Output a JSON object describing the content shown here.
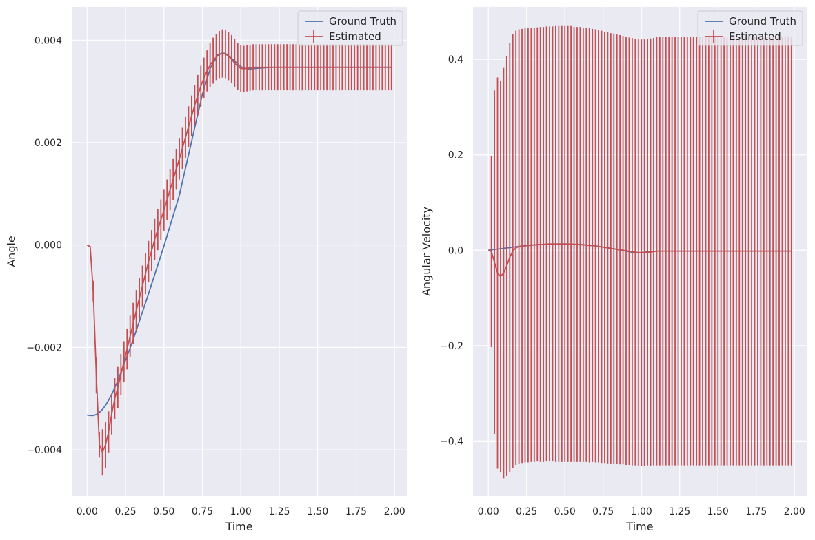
{
  "colors": {
    "background": "#eaeaf2",
    "grid": "#ffffff",
    "ground_truth": "#4c72b0",
    "estimated": "#c44e52",
    "text": "#262626"
  },
  "chart_data": [
    {
      "type": "line",
      "xlabel": "Time",
      "ylabel": "Angle",
      "xlim": [
        -0.1,
        2.08
      ],
      "ylim": [
        -0.0049,
        0.00465
      ],
      "xticks": [
        0.0,
        0.25,
        0.5,
        0.75,
        1.0,
        1.25,
        1.5,
        1.75,
        2.0
      ],
      "xtick_labels": [
        "0.00",
        "0.25",
        "0.50",
        "0.75",
        "1.00",
        "1.25",
        "1.50",
        "1.75",
        "2.00"
      ],
      "yticks": [
        -0.004,
        -0.002,
        0.0,
        0.002,
        0.004
      ],
      "ytick_labels": [
        "−0.004",
        "−0.002",
        "0.000",
        "0.002",
        "0.004"
      ],
      "grid": true,
      "legend": {
        "position": "top-right",
        "entries": [
          "Ground Truth",
          "Estimated"
        ]
      },
      "series": [
        {
          "name": "Ground Truth",
          "x": [
            0.0,
            0.02,
            0.04,
            0.06,
            0.08,
            0.1,
            0.12,
            0.14,
            0.16,
            0.2,
            0.3,
            0.4,
            0.5,
            0.6,
            0.7,
            0.75,
            0.8,
            0.85,
            0.88,
            0.9,
            0.95,
            1.0,
            1.05,
            1.1,
            1.2,
            1.5,
            1.98
          ],
          "y": [
            -0.00332,
            -0.00333,
            -0.00333,
            -0.00331,
            -0.00327,
            -0.00321,
            -0.00313,
            -0.00303,
            -0.00292,
            -0.00265,
            -0.00185,
            -0.00095,
            -2e-05,
            0.00097,
            0.00229,
            0.00294,
            0.00344,
            0.00371,
            0.00375,
            0.00374,
            0.00362,
            0.00348,
            0.00343,
            0.00345,
            0.00347,
            0.00347,
            0.00347
          ]
        },
        {
          "name": "Estimated",
          "type": "errorbar",
          "x": [
            0.0,
            0.02,
            0.04,
            0.06,
            0.08,
            0.1,
            0.12,
            0.14,
            0.16,
            0.18,
            0.2,
            0.22,
            0.24,
            0.26,
            0.28,
            0.3,
            0.32,
            0.34,
            0.36,
            0.38,
            0.4,
            0.42,
            0.44,
            0.46,
            0.48,
            0.5,
            0.52,
            0.54,
            0.56,
            0.58,
            0.6,
            0.62,
            0.64,
            0.66,
            0.68,
            0.7,
            0.72,
            0.74,
            0.76,
            0.78,
            0.8,
            0.82,
            0.84,
            0.86,
            0.88,
            0.9,
            0.92,
            0.94,
            0.96,
            0.98,
            1.0,
            1.02,
            1.04,
            1.06,
            1.08,
            1.1,
            1.12,
            1.14,
            1.16,
            1.18,
            1.2,
            1.22,
            1.24,
            1.26,
            1.28,
            1.3,
            1.32,
            1.34,
            1.36,
            1.38,
            1.4,
            1.42,
            1.44,
            1.46,
            1.48,
            1.5,
            1.52,
            1.54,
            1.56,
            1.58,
            1.6,
            1.62,
            1.64,
            1.66,
            1.68,
            1.7,
            1.72,
            1.74,
            1.76,
            1.78,
            1.8,
            1.82,
            1.84,
            1.86,
            1.88,
            1.9,
            1.92,
            1.94,
            1.96,
            1.98
          ],
          "y": [
            0.0,
            -3e-05,
            -0.0009,
            -0.00255,
            -0.0039,
            -0.00405,
            -0.0039,
            -0.00365,
            -0.0033,
            -0.003,
            -0.00278,
            -0.00253,
            -0.00228,
            -0.00203,
            -0.00178,
            -0.00153,
            -0.00128,
            -0.00104,
            -0.0008,
            -0.00056,
            -0.00032,
            -0.00011,
            0.00011,
            0.0003,
            0.00049,
            0.00068,
            0.00088,
            0.00108,
            0.00128,
            0.00148,
            0.00168,
            0.00189,
            0.0021,
            0.00231,
            0.00252,
            0.00273,
            0.00292,
            0.0031,
            0.00326,
            0.0034,
            0.00351,
            0.0036,
            0.00367,
            0.00372,
            0.00374,
            0.00373,
            0.00369,
            0.00363,
            0.00355,
            0.00349,
            0.00345,
            0.00344,
            0.00345,
            0.00346,
            0.00347,
            0.00347,
            0.00347,
            0.00347,
            0.00347,
            0.00347,
            0.00347,
            0.00347,
            0.00347,
            0.00347,
            0.00347,
            0.00347,
            0.00347,
            0.00347,
            0.00347,
            0.00347,
            0.00347,
            0.00347,
            0.00347,
            0.00347,
            0.00347,
            0.00347,
            0.00347,
            0.00347,
            0.00347,
            0.00347,
            0.00347,
            0.00347,
            0.00347,
            0.00347,
            0.00347,
            0.00347,
            0.00347,
            0.00347,
            0.00347,
            0.00347,
            0.00347,
            0.00347,
            0.00347,
            0.00347,
            0.00347,
            0.00347,
            0.00347,
            0.00347,
            0.00347,
            0.00347
          ],
          "yerr": [
            0.0,
            0.0,
            0.0002,
            0.00035,
            0.00025,
            0.00045,
            0.00045,
            0.0004,
            0.0004,
            0.0004,
            0.0004,
            0.0004,
            0.0004,
            0.0004,
            0.0004,
            0.0004,
            0.0004,
            0.0004,
            0.0004,
            0.0004,
            0.0004,
            0.0004,
            0.0004,
            0.0004,
            0.0004,
            0.0004,
            0.0004,
            0.0004,
            0.0004,
            0.0004,
            0.0004,
            0.0004,
            0.0004,
            0.0004,
            0.0004,
            0.0004,
            0.0004,
            0.0004,
            0.0004,
            0.0004,
            0.00043,
            0.00045,
            0.00045,
            0.00046,
            0.00047,
            0.00047,
            0.00047,
            0.00047,
            0.00047,
            0.00046,
            0.00046,
            0.00045,
            0.00045,
            0.00045,
            0.00045,
            0.00045,
            0.00045,
            0.00045,
            0.00045,
            0.00045,
            0.00045,
            0.00045,
            0.00045,
            0.00045,
            0.00045,
            0.00045,
            0.00045,
            0.00045,
            0.00045,
            0.00045,
            0.00045,
            0.00045,
            0.00045,
            0.00045,
            0.00045,
            0.00045,
            0.00045,
            0.00045,
            0.00045,
            0.00045,
            0.00045,
            0.00045,
            0.00045,
            0.00045,
            0.00045,
            0.00045,
            0.00045,
            0.00045,
            0.00045,
            0.00045,
            0.00045,
            0.00045,
            0.00045,
            0.00045,
            0.00045,
            0.00045,
            0.00045,
            0.00045,
            0.00045,
            0.00045
          ]
        }
      ]
    },
    {
      "type": "line",
      "xlabel": "Time",
      "ylabel": "Angular Velocity",
      "xlim": [
        -0.1,
        2.08
      ],
      "ylim": [
        -0.515,
        0.51
      ],
      "xticks": [
        0.0,
        0.25,
        0.5,
        0.75,
        1.0,
        1.25,
        1.5,
        1.75,
        2.0
      ],
      "xtick_labels": [
        "0.00",
        "0.25",
        "0.50",
        "0.75",
        "1.00",
        "1.25",
        "1.50",
        "1.75",
        "2.00"
      ],
      "yticks": [
        -0.4,
        -0.2,
        0.0,
        0.2,
        0.4
      ],
      "ytick_labels": [
        "−0.4",
        "−0.2",
        "0.0",
        "0.2",
        "0.4"
      ],
      "grid": true,
      "legend": {
        "position": "top-right",
        "entries": [
          "Ground Truth",
          "Estimated"
        ]
      },
      "series": [
        {
          "name": "Ground Truth",
          "x": [
            0.0,
            0.05,
            0.1,
            0.15,
            0.2,
            0.3,
            0.4,
            0.5,
            0.6,
            0.7,
            0.8,
            0.9,
            0.95,
            1.0,
            1.05,
            1.1,
            1.2,
            1.5,
            1.98
          ],
          "y": [
            0.0,
            0.002,
            0.004,
            0.006,
            0.008,
            0.011,
            0.013,
            0.013,
            0.012,
            0.009,
            0.004,
            -0.002,
            -0.005,
            -0.005,
            -0.003,
            -0.002,
            -0.002,
            -0.002,
            -0.002
          ]
        },
        {
          "name": "Estimated",
          "type": "errorbar",
          "x": [
            0.0,
            0.02,
            0.04,
            0.06,
            0.08,
            0.1,
            0.12,
            0.14,
            0.16,
            0.18,
            0.2,
            0.22,
            0.24,
            0.26,
            0.28,
            0.3,
            0.32,
            0.34,
            0.36,
            0.38,
            0.4,
            0.42,
            0.44,
            0.46,
            0.48,
            0.5,
            0.52,
            0.54,
            0.56,
            0.58,
            0.6,
            0.62,
            0.64,
            0.66,
            0.68,
            0.7,
            0.72,
            0.74,
            0.76,
            0.78,
            0.8,
            0.82,
            0.84,
            0.86,
            0.88,
            0.9,
            0.92,
            0.94,
            0.96,
            0.98,
            1.0,
            1.02,
            1.04,
            1.06,
            1.08,
            1.1,
            1.12,
            1.14,
            1.16,
            1.18,
            1.2,
            1.22,
            1.24,
            1.26,
            1.28,
            1.3,
            1.32,
            1.34,
            1.36,
            1.38,
            1.4,
            1.42,
            1.44,
            1.46,
            1.48,
            1.5,
            1.52,
            1.54,
            1.56,
            1.58,
            1.6,
            1.62,
            1.64,
            1.66,
            1.68,
            1.7,
            1.72,
            1.74,
            1.76,
            1.78,
            1.8,
            1.82,
            1.84,
            1.86,
            1.88,
            1.9,
            1.92,
            1.94,
            1.96,
            1.98
          ],
          "y": [
            0.0,
            -0.003,
            -0.025,
            -0.048,
            -0.055,
            -0.048,
            -0.033,
            -0.015,
            -0.002,
            0.005,
            0.008,
            0.009,
            0.01,
            0.01,
            0.011,
            0.011,
            0.012,
            0.012,
            0.012,
            0.013,
            0.013,
            0.013,
            0.013,
            0.013,
            0.013,
            0.013,
            0.013,
            0.013,
            0.012,
            0.012,
            0.012,
            0.011,
            0.011,
            0.01,
            0.01,
            0.009,
            0.008,
            0.007,
            0.006,
            0.005,
            0.004,
            0.003,
            0.002,
            0.001,
            0.0,
            -0.001,
            -0.002,
            -0.003,
            -0.004,
            -0.005,
            -0.005,
            -0.005,
            -0.004,
            -0.004,
            -0.003,
            -0.002,
            -0.002,
            -0.002,
            -0.002,
            -0.002,
            -0.002,
            -0.002,
            -0.002,
            -0.002,
            -0.002,
            -0.002,
            -0.002,
            -0.002,
            -0.002,
            -0.002,
            -0.002,
            -0.002,
            -0.002,
            -0.002,
            -0.002,
            -0.002,
            -0.002,
            -0.002,
            -0.002,
            -0.002,
            -0.002,
            -0.002,
            -0.002,
            -0.002,
            -0.002,
            -0.002,
            -0.002,
            -0.002,
            -0.002,
            -0.002,
            -0.002,
            -0.002,
            -0.002,
            -0.002,
            -0.002,
            -0.002,
            -0.002,
            -0.002,
            -0.002,
            -0.002
          ],
          "yerr": [
            0.0,
            0.2,
            0.36,
            0.41,
            0.41,
            0.43,
            0.44,
            0.45,
            0.455,
            0.455,
            0.455,
            0.455,
            0.455,
            0.455,
            0.455,
            0.455,
            0.455,
            0.456,
            0.456,
            0.456,
            0.456,
            0.456,
            0.457,
            0.457,
            0.457,
            0.457,
            0.457,
            0.457,
            0.456,
            0.456,
            0.456,
            0.455,
            0.455,
            0.455,
            0.454,
            0.454,
            0.453,
            0.453,
            0.452,
            0.452,
            0.451,
            0.451,
            0.45,
            0.45,
            0.449,
            0.449,
            0.448,
            0.448,
            0.447,
            0.447,
            0.447,
            0.447,
            0.447,
            0.448,
            0.448,
            0.449,
            0.449,
            0.449,
            0.449,
            0.449,
            0.449,
            0.449,
            0.449,
            0.449,
            0.449,
            0.449,
            0.449,
            0.449,
            0.449,
            0.449,
            0.449,
            0.449,
            0.449,
            0.449,
            0.449,
            0.449,
            0.449,
            0.449,
            0.449,
            0.449,
            0.449,
            0.449,
            0.449,
            0.449,
            0.449,
            0.449,
            0.449,
            0.449,
            0.449,
            0.449,
            0.449,
            0.449,
            0.449,
            0.449,
            0.449,
            0.449,
            0.449,
            0.449,
            0.449,
            0.449
          ]
        }
      ]
    }
  ]
}
